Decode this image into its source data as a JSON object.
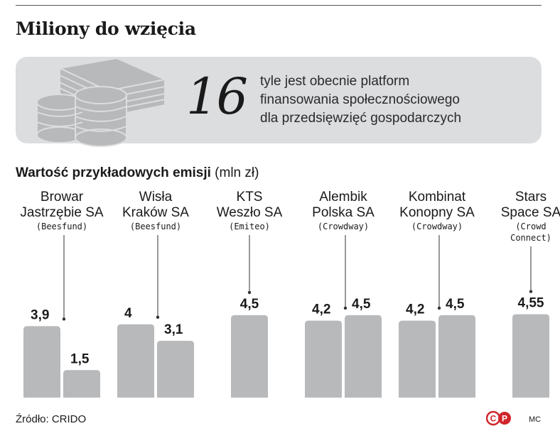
{
  "title": "Miliony do wzięcia",
  "banner": {
    "number": "16",
    "text_lines": [
      "tyle jest obecnie platform",
      "finansowania społecznościowego",
      "dla przedsięwzięć gospodarczych"
    ],
    "icon": "money-stack-icon"
  },
  "subtitle": {
    "bold": "Wartość przykładowych emisji",
    "unit": "(mln zł)"
  },
  "footer": {
    "source": "Źródło: CRIDO",
    "initials": "MC",
    "logo_letters": [
      "C",
      "P"
    ]
  },
  "colors": {
    "bar": "#b7b9bb",
    "banner": "#dcdddf",
    "logo": "#d0252b",
    "text": "#1a1a1a"
  },
  "chart_data": {
    "type": "bar",
    "groups": [
      {
        "name_lines": [
          "Browar",
          "Jastrzębie SA"
        ],
        "platform_lines": [
          "(Beesfund)"
        ],
        "values": [
          3.9,
          1.5
        ],
        "labels": [
          "3,9",
          "1,5"
        ]
      },
      {
        "name_lines": [
          "Wisła",
          "Kraków SA"
        ],
        "platform_lines": [
          "(Beesfund)"
        ],
        "values": [
          4,
          3.1
        ],
        "labels": [
          "4",
          "3,1"
        ]
      },
      {
        "name_lines": [
          "KTS",
          "Weszło SA"
        ],
        "platform_lines": [
          "(Emiteo)"
        ],
        "values": [
          4.5
        ],
        "labels": [
          "4,5"
        ]
      },
      {
        "name_lines": [
          "Alembik",
          "Polska SA"
        ],
        "platform_lines": [
          "(Crowdway)"
        ],
        "values": [
          4.2,
          4.5
        ],
        "labels": [
          "4,2",
          "4,5"
        ]
      },
      {
        "name_lines": [
          "Kombinat",
          "Konopny SA"
        ],
        "platform_lines": [
          "(Crowdway)"
        ],
        "values": [
          4.2,
          4.5
        ],
        "labels": [
          "4,2",
          "4,5"
        ]
      },
      {
        "name_lines": [
          "Stars",
          "Space SA"
        ],
        "platform_lines": [
          "(Crowd",
          "Connect)"
        ],
        "values": [
          4.55
        ],
        "labels": [
          "4,55"
        ]
      }
    ],
    "ylim": [
      0,
      5
    ]
  }
}
